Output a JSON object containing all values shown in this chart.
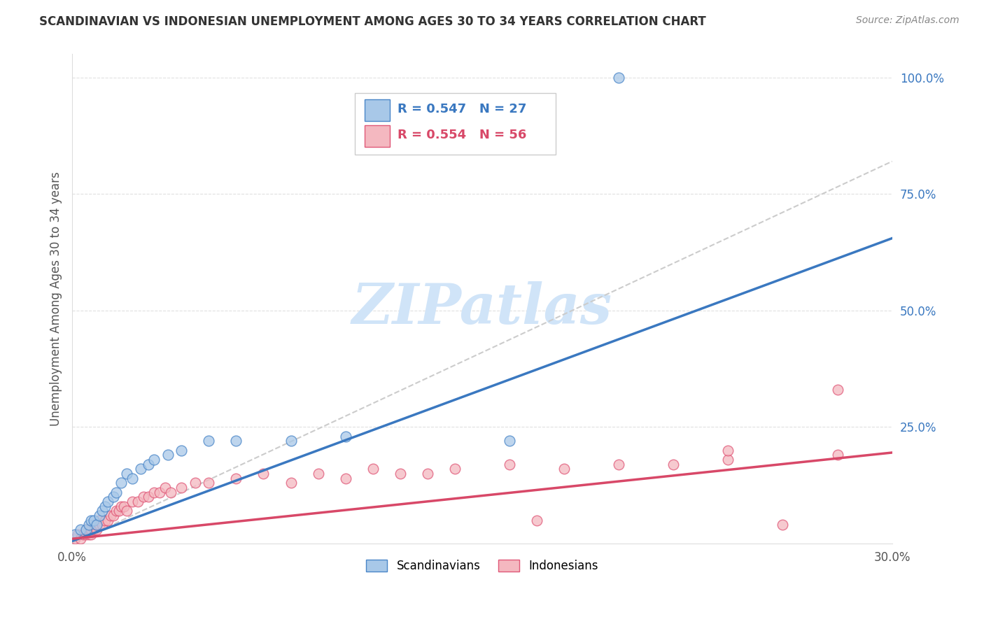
{
  "title": "SCANDINAVIAN VS INDONESIAN UNEMPLOYMENT AMONG AGES 30 TO 34 YEARS CORRELATION CHART",
  "source": "Source: ZipAtlas.com",
  "ylabel": "Unemployment Among Ages 30 to 34 years",
  "xlim": [
    0.0,
    0.3
  ],
  "ylim": [
    0.0,
    1.05
  ],
  "scand_color": "#a8c8e8",
  "scand_edge_color": "#4a86c8",
  "indo_color": "#f4b8c0",
  "indo_edge_color": "#e05878",
  "scand_R": 0.547,
  "scand_N": 27,
  "indo_R": 0.554,
  "indo_N": 56,
  "scand_line_color": "#3a78c0",
  "indo_line_color": "#d84868",
  "ref_line_color": "#cccccc",
  "watermark_text": "ZIPatlas",
  "watermark_color": "#d0e4f8",
  "background_color": "#ffffff",
  "grid_color": "#e0e0e0",
  "title_color": "#333333",
  "source_color": "#888888",
  "ylabel_color": "#555555",
  "ytick_color": "#3a78c0",
  "xtick_color": "#555555",
  "scand_trend_x": [
    0.0,
    0.3
  ],
  "scand_trend_y": [
    0.005,
    0.655
  ],
  "indo_trend_x": [
    0.0,
    0.3
  ],
  "indo_trend_y": [
    0.01,
    0.195
  ],
  "ref_trend_x": [
    0.0,
    0.3
  ],
  "ref_trend_y": [
    0.0,
    0.82
  ],
  "scand_scatter_x": [
    0.001,
    0.003,
    0.005,
    0.006,
    0.007,
    0.008,
    0.009,
    0.01,
    0.011,
    0.012,
    0.013,
    0.015,
    0.016,
    0.018,
    0.02,
    0.022,
    0.025,
    0.028,
    0.03,
    0.035,
    0.04,
    0.05,
    0.06,
    0.08,
    0.1,
    0.16,
    0.2
  ],
  "scand_scatter_y": [
    0.02,
    0.03,
    0.03,
    0.04,
    0.05,
    0.05,
    0.04,
    0.06,
    0.07,
    0.08,
    0.09,
    0.1,
    0.11,
    0.13,
    0.15,
    0.14,
    0.16,
    0.17,
    0.18,
    0.19,
    0.2,
    0.22,
    0.22,
    0.22,
    0.23,
    0.22,
    1.0
  ],
  "indo_scatter_x": [
    0.001,
    0.002,
    0.003,
    0.004,
    0.005,
    0.005,
    0.006,
    0.006,
    0.007,
    0.007,
    0.008,
    0.008,
    0.009,
    0.009,
    0.01,
    0.01,
    0.011,
    0.012,
    0.013,
    0.014,
    0.015,
    0.016,
    0.017,
    0.018,
    0.019,
    0.02,
    0.022,
    0.024,
    0.026,
    0.028,
    0.03,
    0.032,
    0.034,
    0.036,
    0.04,
    0.045,
    0.05,
    0.06,
    0.07,
    0.08,
    0.09,
    0.1,
    0.11,
    0.12,
    0.14,
    0.16,
    0.17,
    0.18,
    0.2,
    0.22,
    0.24,
    0.26,
    0.28,
    0.13,
    0.28,
    0.24
  ],
  "indo_scatter_y": [
    0.01,
    0.02,
    0.01,
    0.02,
    0.02,
    0.03,
    0.02,
    0.03,
    0.02,
    0.03,
    0.03,
    0.04,
    0.03,
    0.04,
    0.04,
    0.05,
    0.04,
    0.05,
    0.05,
    0.06,
    0.06,
    0.07,
    0.07,
    0.08,
    0.08,
    0.07,
    0.09,
    0.09,
    0.1,
    0.1,
    0.11,
    0.11,
    0.12,
    0.11,
    0.12,
    0.13,
    0.13,
    0.14,
    0.15,
    0.13,
    0.15,
    0.14,
    0.16,
    0.15,
    0.16,
    0.17,
    0.05,
    0.16,
    0.17,
    0.17,
    0.18,
    0.04,
    0.19,
    0.15,
    0.33,
    0.2
  ]
}
